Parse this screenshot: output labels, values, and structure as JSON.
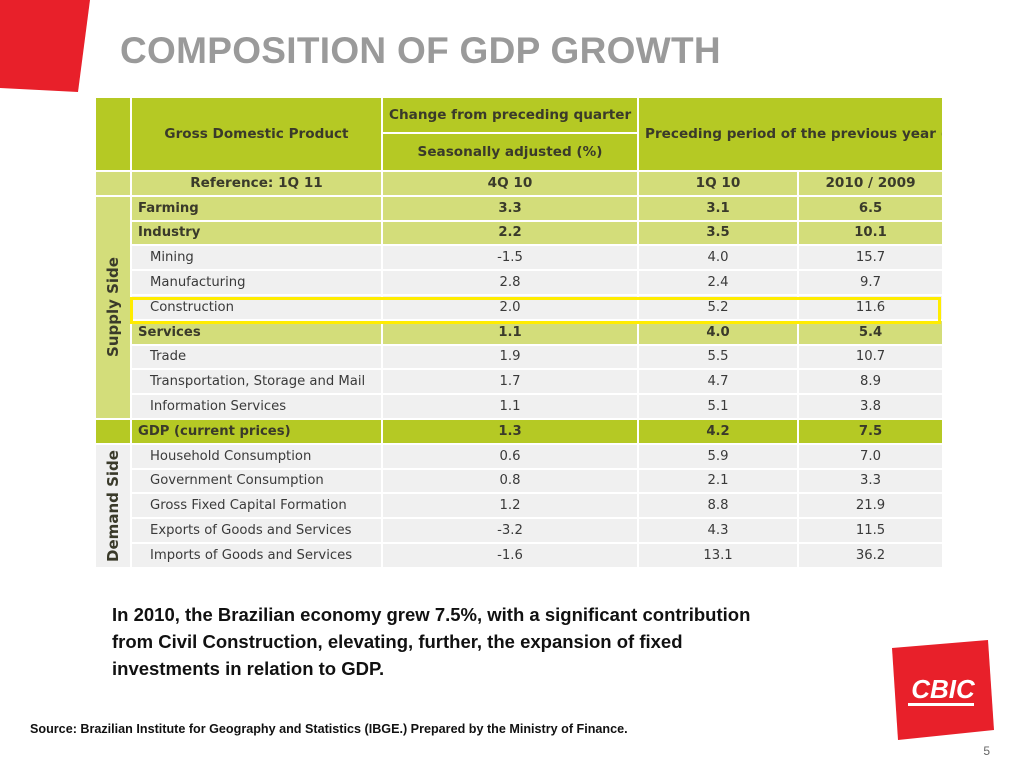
{
  "slide": {
    "title": "COMPOSITION OF GDP GROWTH",
    "paragraph": "In 2010, the Brazilian economy grew 7.5%, with a significant contribution from Civil Construction, elevating, further, the expansion of fixed investments in relation to GDP.",
    "source": "Source: Brazilian Institute for Geography and Statistics (IBGE.) Prepared by the Ministry of Finance.",
    "page_number": "5",
    "logo_text": "CBIC",
    "colors": {
      "accent_red": "#e8202a",
      "header_green": "#b5c924",
      "light_green": "#d3dd7a",
      "highlight_yellow": "#ffec00"
    }
  },
  "table": {
    "header": {
      "gdp": "Gross Domestic Product",
      "change": "Change from preceding  quarter",
      "seasonal": "Seasonally adjusted (%)",
      "preceding": "Preceding period of the previous year (%)"
    },
    "reference": {
      "label": "Reference: 1Q 11",
      "col1": "4Q 10",
      "col2": "1Q 10",
      "col3": "2010 / 2009"
    },
    "supply_label": "Supply Side",
    "demand_label": "Demand Side",
    "supply_rows": [
      {
        "label": "Farming",
        "v1": "3.3",
        "v2": "3.1",
        "v3": "6.5"
      },
      {
        "label": "Industry",
        "v1": "2.2",
        "v2": "3.5",
        "v3": "10.1"
      },
      {
        "label": "Mining",
        "v1": "-1.5",
        "v2": "4.0",
        "v3": "15.7"
      },
      {
        "label": "Manufacturing",
        "v1": "2.8",
        "v2": "2.4",
        "v3": "9.7"
      },
      {
        "label": "Construction",
        "v1": "2.0",
        "v2": "5.2",
        "v3": "11.6"
      },
      {
        "label": "Services",
        "v1": "1.1",
        "v2": "4.0",
        "v3": "5.4"
      },
      {
        "label": "Trade",
        "v1": "1.9",
        "v2": "5.5",
        "v3": "10.7"
      },
      {
        "label": "Transportation, Storage and Mail",
        "v1": "1.7",
        "v2": "4.7",
        "v3": "8.9"
      },
      {
        "label": "Information Services",
        "v1": "1.1",
        "v2": "5.1",
        "v3": "3.8"
      }
    ],
    "gdp_row": {
      "label": "GDP (current prices)",
      "v1": "1.3",
      "v2": "4.2",
      "v3": "7.5"
    },
    "demand_rows": [
      {
        "label": "Household Consumption",
        "v1": "0.6",
        "v2": "5.9",
        "v3": "7.0"
      },
      {
        "label": "Government Consumption",
        "v1": "0.8",
        "v2": "2.1",
        "v3": "3.3"
      },
      {
        "label": "Gross Fixed Capital Formation",
        "v1": "1.2",
        "v2": "8.8",
        "v3": "21.9"
      },
      {
        "label": "Exports of Goods and Services",
        "v1": "-3.2",
        "v2": "4.3",
        "v3": "11.5"
      },
      {
        "label": "Imports of Goods and Services",
        "v1": "-1.6",
        "v2": "13.1",
        "v3": "36.2"
      }
    ]
  }
}
